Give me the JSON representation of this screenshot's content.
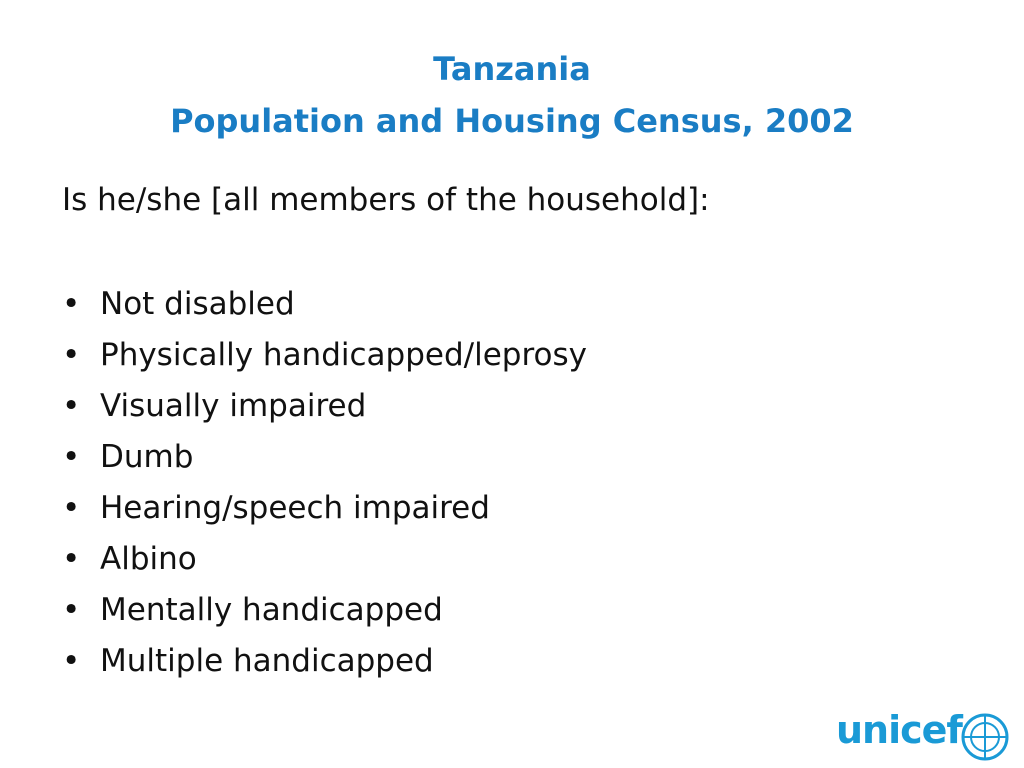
{
  "title": {
    "line1": "Tanzania",
    "line2": "Population and Housing Census, 2002"
  },
  "question": "Is he/she [all members of the household]:",
  "items": [
    "Not disabled",
    "Physically handicapped/leprosy",
    "Visually impaired",
    "Dumb",
    "Hearing/speech impaired",
    "Albino",
    "Mentally handicapped",
    "Multiple handicapped"
  ],
  "logo": "unicef"
}
